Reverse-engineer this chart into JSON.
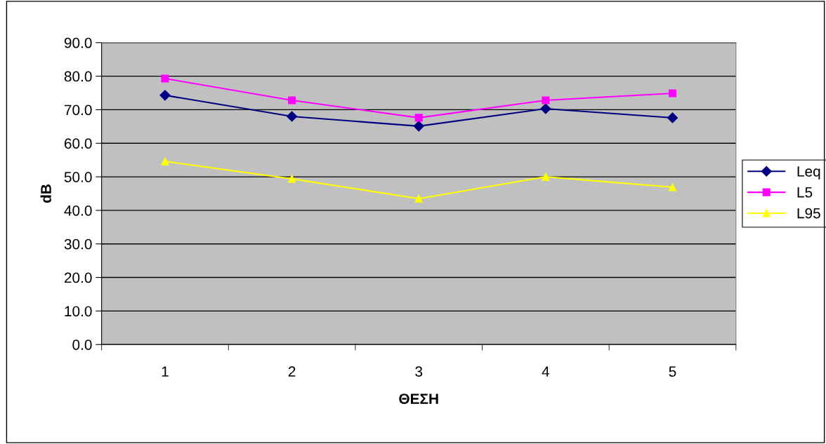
{
  "chart_data": {
    "type": "line",
    "xlabel": "ΘΕΣΗ",
    "ylabel": "dB",
    "categories": [
      "1",
      "2",
      "3",
      "4",
      "5"
    ],
    "series": [
      {
        "name": "Leq",
        "color": "#000080",
        "marker": "diamond",
        "values": [
          74.3,
          68.0,
          65.1,
          70.3,
          67.6
        ]
      },
      {
        "name": "L5",
        "color": "#ff00ff",
        "marker": "square",
        "values": [
          79.3,
          72.8,
          67.6,
          72.8,
          74.9
        ]
      },
      {
        "name": "L95",
        "color": "#ffff00",
        "marker": "triangle",
        "values": [
          54.6,
          49.4,
          43.5,
          50.0,
          46.9
        ]
      }
    ],
    "ylim": [
      0,
      90
    ],
    "yticks": [
      {
        "value": 0,
        "label": "0.0"
      },
      {
        "value": 10,
        "label": "10.0"
      },
      {
        "value": 20,
        "label": "20.0"
      },
      {
        "value": 30,
        "label": "30.0"
      },
      {
        "value": 40,
        "label": "40.0"
      },
      {
        "value": 50,
        "label": "50.0"
      },
      {
        "value": 60,
        "label": "60.0"
      },
      {
        "value": 70,
        "label": "70.0"
      },
      {
        "value": 80,
        "label": "80.0"
      },
      {
        "value": 90,
        "label": "90.0"
      }
    ],
    "grid": "y",
    "legend": "right",
    "line_style": "solid"
  }
}
